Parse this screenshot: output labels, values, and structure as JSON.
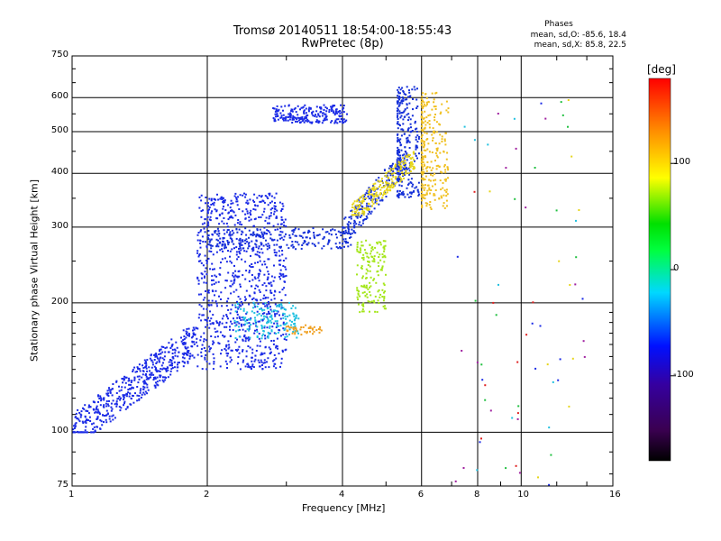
{
  "title": "Tromsø 20140511 18:54:00-18:55:43",
  "subtitle": "RwPretec (8p)",
  "phase_info": {
    "heading": "Phases",
    "line_o": "mean, sd,O: -85.6, 18.4",
    "line_x": "mean, sd,X:  85.8, 22.5"
  },
  "chart_data": {
    "type": "scatter",
    "title": "Tromsø 20140511 18:54:00-18:55:43",
    "subtitle": "RwPretec (8p)",
    "xlabel": "Frequency [MHz]",
    "ylabel": "Stationary phase Virtual Height [km]",
    "x_scale": "log",
    "y_scale": "log",
    "xlim": [
      1,
      16
    ],
    "ylim": [
      75,
      750
    ],
    "x_ticks": [
      1,
      2,
      4,
      6,
      8,
      10,
      16
    ],
    "y_ticks": [
      75,
      100,
      200,
      300,
      400,
      500,
      600,
      750
    ],
    "grid": true,
    "colorbar": {
      "label": "[deg]",
      "range": [
        -180,
        180
      ],
      "ticks": [
        100,
        0,
        -100
      ],
      "colormap": "rainbow (black-purple-blue-cyan-green-yellow-red)"
    },
    "trace_groups": [
      {
        "name": "",
        "phase": -100,
        "color": "#1a2ae6",
        "x_range": [
          1.0,
          1.9
        ],
        "y_range": [
          100,
          175
        ],
        "shape": "rising band"
      },
      {
        "name": "",
        "phase": -95,
        "color": "#1a2ae6",
        "x_range": [
          1.9,
          3.0
        ],
        "y_range": [
          140,
          360
        ],
        "shape": "dense cloud"
      },
      {
        "name": "",
        "phase": -100,
        "color": "#1530d8",
        "x_range": [
          2.0,
          4.2
        ],
        "y_range": [
          265,
          300
        ],
        "shape": "horizontal trace"
      },
      {
        "name": "",
        "phase": -100,
        "color": "#1530d8",
        "x_range": [
          4.0,
          5.6
        ],
        "y_range": [
          290,
          460
        ],
        "shape": "curving trace"
      },
      {
        "name": "",
        "phase": -100,
        "color": "#1530d8",
        "x_range": [
          5.3,
          6.0
        ],
        "y_range": [
          350,
          640
        ],
        "shape": "near-vertical cusp"
      },
      {
        "name": "",
        "phase": 90,
        "color": "#e6d51a",
        "x_range": [
          4.2,
          5.8
        ],
        "y_range": [
          320,
          450
        ],
        "shape": "curving trace"
      },
      {
        "name": "",
        "phase": 80,
        "color": "#a4e61a",
        "x_range": [
          4.3,
          5.0
        ],
        "y_range": [
          190,
          280
        ],
        "shape": "patch"
      },
      {
        "name": "",
        "phase": 95,
        "color": "#f0c020",
        "x_range": [
          6.0,
          7.0
        ],
        "y_range": [
          330,
          620
        ],
        "shape": "near-vertical cusp"
      },
      {
        "name": "",
        "phase": -95,
        "color": "#1a2ae6",
        "x_range": [
          2.8,
          4.1
        ],
        "y_range": [
          520,
          580
        ],
        "shape": "horizontal trace"
      },
      {
        "name": "",
        "phase": 0,
        "color": "#20c0e0",
        "x_range": [
          2.3,
          3.2
        ],
        "y_range": [
          165,
          200
        ],
        "shape": "patch"
      },
      {
        "name": "",
        "phase": 110,
        "color": "#f0a020",
        "x_range": [
          3.0,
          3.6
        ],
        "y_range": [
          168,
          178
        ],
        "shape": "short segment"
      },
      {
        "name": "",
        "phase": 0,
        "color": "#808080",
        "x_range": [
          7.0,
          14.0
        ],
        "y_range": [
          75,
          600
        ],
        "shape": "scattered sparse noise"
      }
    ]
  }
}
